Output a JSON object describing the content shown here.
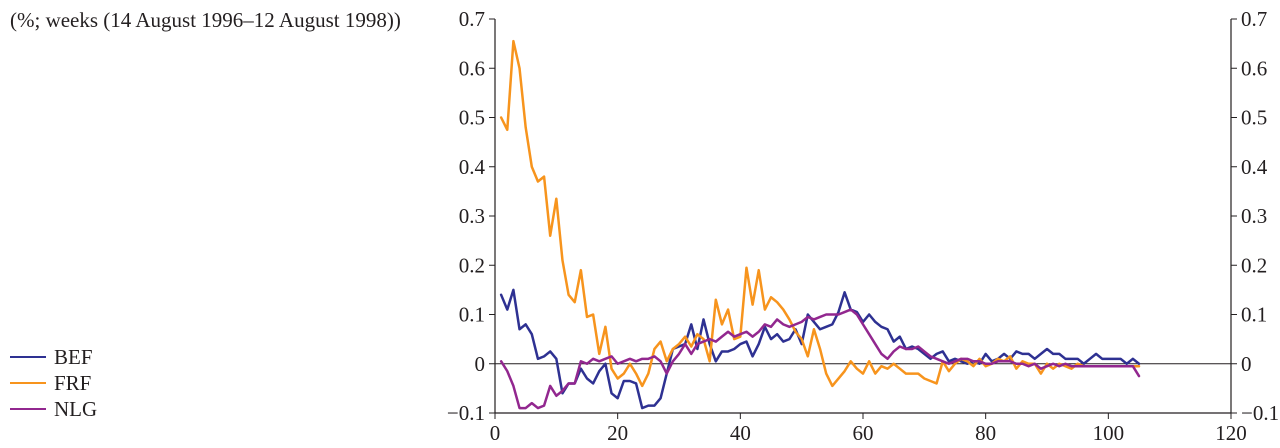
{
  "subtitle": "(%; weeks (14 August 1996–12 August 1998))",
  "chart_data": {
    "type": "line",
    "title": "",
    "subtitle": "(%; weeks (14 August 1996–12 August 1998))",
    "xlabel": "",
    "ylabel": "",
    "xlim": [
      0,
      120
    ],
    "ylim": [
      -0.1,
      0.7
    ],
    "x_ticks": [
      "0",
      "20",
      "40",
      "60",
      "80",
      "100",
      "120"
    ],
    "y_ticks": [
      "−0.1",
      "0",
      "0.1",
      "0.2",
      "0.3",
      "0.4",
      "0.5",
      "0.6",
      "0.7"
    ],
    "right_axis_ticks": [
      "−0.1",
      "0",
      "0.1",
      "0.2",
      "0.3",
      "0.4",
      "0.5",
      "0.6",
      "0.7"
    ],
    "grid": false,
    "zero_line": true,
    "legend_position": "bottom-left",
    "series": [
      {
        "name": "BEF",
        "color": "#2e3192",
        "x": [
          1,
          2,
          3,
          4,
          5,
          6,
          7,
          8,
          9,
          10,
          11,
          12,
          13,
          14,
          15,
          16,
          17,
          18,
          19,
          20,
          21,
          22,
          23,
          24,
          25,
          26,
          27,
          28,
          29,
          30,
          31,
          32,
          33,
          34,
          35,
          36,
          37,
          38,
          39,
          40,
          41,
          42,
          43,
          44,
          45,
          46,
          47,
          48,
          49,
          50,
          51,
          52,
          53,
          54,
          55,
          56,
          57,
          58,
          59,
          60,
          61,
          62,
          63,
          64,
          65,
          66,
          67,
          68,
          69,
          70,
          71,
          72,
          73,
          74,
          75,
          76,
          77,
          78,
          79,
          80,
          81,
          82,
          83,
          84,
          85,
          86,
          87,
          88,
          89,
          90,
          91,
          92,
          93,
          94,
          95,
          96,
          97,
          98,
          99,
          100,
          101,
          102,
          103,
          104,
          105
        ],
        "values": [
          0.14,
          0.11,
          0.15,
          0.07,
          0.08,
          0.06,
          0.01,
          0.015,
          0.025,
          0.01,
          -0.06,
          -0.04,
          -0.04,
          -0.01,
          -0.03,
          -0.04,
          -0.015,
          0.0,
          -0.06,
          -0.07,
          -0.035,
          -0.035,
          -0.04,
          -0.09,
          -0.085,
          -0.085,
          -0.07,
          -0.02,
          0.03,
          0.035,
          0.04,
          0.08,
          0.03,
          0.09,
          0.04,
          0.005,
          0.025,
          0.025,
          0.03,
          0.04,
          0.045,
          0.015,
          0.04,
          0.075,
          0.05,
          0.06,
          0.045,
          0.05,
          0.07,
          0.04,
          0.1,
          0.085,
          0.07,
          0.075,
          0.08,
          0.105,
          0.145,
          0.11,
          0.105,
          0.085,
          0.1,
          0.085,
          0.075,
          0.07,
          0.045,
          0.055,
          0.03,
          0.035,
          0.03,
          0.02,
          0.01,
          0.02,
          0.025,
          0.005,
          0.01,
          0.005,
          0.0,
          0.005,
          0.0,
          0.02,
          0.005,
          0.01,
          0.02,
          0.01,
          0.025,
          0.02,
          0.02,
          0.01,
          0.02,
          0.03,
          0.02,
          0.02,
          0.01,
          0.01,
          0.01,
          0.0,
          0.01,
          0.02,
          0.01,
          0.01,
          0.01,
          0.01,
          0.0,
          0.01,
          0.0
        ]
      },
      {
        "name": "FRF",
        "color": "#f7941d",
        "x": [
          1,
          2,
          3,
          4,
          5,
          6,
          7,
          8,
          9,
          10,
          11,
          12,
          13,
          14,
          15,
          16,
          17,
          18,
          19,
          20,
          21,
          22,
          23,
          24,
          25,
          26,
          27,
          28,
          29,
          30,
          31,
          32,
          33,
          34,
          35,
          36,
          37,
          38,
          39,
          40,
          41,
          42,
          43,
          44,
          45,
          46,
          47,
          48,
          49,
          50,
          51,
          52,
          53,
          54,
          55,
          56,
          57,
          58,
          59,
          60,
          61,
          62,
          63,
          64,
          65,
          66,
          67,
          68,
          69,
          70,
          71,
          72,
          73,
          74,
          75,
          76,
          77,
          78,
          79,
          80,
          81,
          82,
          83,
          84,
          85,
          86,
          87,
          88,
          89,
          90,
          91,
          92,
          93,
          94,
          95,
          96,
          97,
          98,
          99,
          100,
          101,
          102,
          103,
          104,
          105
        ],
        "values": [
          0.5,
          0.475,
          0.655,
          0.6,
          0.48,
          0.4,
          0.37,
          0.38,
          0.26,
          0.335,
          0.21,
          0.14,
          0.125,
          0.19,
          0.095,
          0.1,
          0.02,
          0.075,
          -0.01,
          -0.03,
          -0.02,
          0.0,
          -0.02,
          -0.045,
          -0.02,
          0.03,
          0.045,
          0.005,
          0.03,
          0.04,
          0.055,
          0.035,
          0.06,
          0.05,
          0.005,
          0.13,
          0.08,
          0.11,
          0.05,
          0.055,
          0.195,
          0.12,
          0.19,
          0.11,
          0.135,
          0.125,
          0.11,
          0.09,
          0.065,
          0.05,
          0.015,
          0.07,
          0.03,
          -0.02,
          -0.045,
          -0.03,
          -0.015,
          0.005,
          -0.01,
          -0.02,
          0.005,
          -0.02,
          -0.005,
          -0.01,
          0.0,
          -0.01,
          -0.02,
          -0.02,
          -0.02,
          -0.03,
          -0.035,
          -0.04,
          0.005,
          -0.015,
          0.0,
          0.01,
          0.005,
          -0.005,
          0.01,
          -0.005,
          0.0,
          0.01,
          0.005,
          0.015,
          -0.01,
          0.005,
          0.0,
          0.0,
          -0.02,
          0.0,
          -0.01,
          0.0,
          -0.005,
          -0.01,
          0.0,
          -0.005,
          -0.005,
          -0.005,
          -0.005,
          -0.005,
          -0.005,
          -0.005,
          -0.005,
          -0.005,
          -0.005
        ]
      },
      {
        "name": "NLG",
        "color": "#92278f",
        "x": [
          1,
          2,
          3,
          4,
          5,
          6,
          7,
          8,
          9,
          10,
          11,
          12,
          13,
          14,
          15,
          16,
          17,
          18,
          19,
          20,
          21,
          22,
          23,
          24,
          25,
          26,
          27,
          28,
          29,
          30,
          31,
          32,
          33,
          34,
          35,
          36,
          37,
          38,
          39,
          40,
          41,
          42,
          43,
          44,
          45,
          46,
          47,
          48,
          49,
          50,
          51,
          52,
          53,
          54,
          55,
          56,
          57,
          58,
          59,
          60,
          61,
          62,
          63,
          64,
          65,
          66,
          67,
          68,
          69,
          70,
          71,
          72,
          73,
          74,
          75,
          76,
          77,
          78,
          79,
          80,
          81,
          82,
          83,
          84,
          85,
          86,
          87,
          88,
          89,
          90,
          91,
          92,
          93,
          94,
          95,
          96,
          97,
          98,
          99,
          100,
          101,
          102,
          103,
          104,
          105
        ],
        "values": [
          0.005,
          -0.015,
          -0.045,
          -0.09,
          -0.09,
          -0.08,
          -0.09,
          -0.085,
          -0.045,
          -0.065,
          -0.055,
          -0.04,
          -0.04,
          0.005,
          0.0,
          0.01,
          0.005,
          0.01,
          0.015,
          0.0,
          0.005,
          0.01,
          0.005,
          0.01,
          0.01,
          0.015,
          0.005,
          -0.02,
          0.005,
          0.02,
          0.04,
          0.02,
          0.04,
          0.045,
          0.05,
          0.045,
          0.055,
          0.065,
          0.055,
          0.06,
          0.065,
          0.055,
          0.065,
          0.08,
          0.075,
          0.09,
          0.08,
          0.075,
          0.08,
          0.085,
          0.095,
          0.09,
          0.095,
          0.1,
          0.1,
          0.1,
          0.105,
          0.11,
          0.1,
          0.08,
          0.06,
          0.04,
          0.02,
          0.01,
          0.025,
          0.035,
          0.03,
          0.03,
          0.035,
          0.025,
          0.015,
          0.01,
          0.005,
          0.0,
          0.005,
          0.01,
          0.01,
          0.005,
          0.005,
          0.0,
          0.0,
          0.005,
          0.005,
          0.005,
          0.0,
          0.0,
          -0.005,
          0.0,
          -0.01,
          -0.005,
          0.0,
          -0.005,
          0.0,
          -0.005,
          -0.005,
          -0.005,
          -0.005,
          -0.005,
          -0.005,
          -0.005,
          -0.005,
          -0.005,
          -0.005,
          -0.005,
          -0.025
        ]
      }
    ]
  }
}
